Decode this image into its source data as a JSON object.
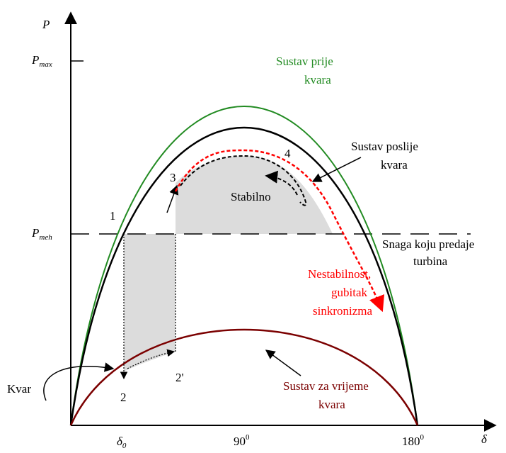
{
  "axes": {
    "y_label": "P",
    "x_label": "δ",
    "pmax": {
      "main": "P",
      "sub": "max"
    },
    "pmeh": {
      "main": "P",
      "sub": "meh"
    },
    "delta0": {
      "main": "δ",
      "sub": "0"
    },
    "x90": {
      "main": "90",
      "sup": "0"
    },
    "x180": {
      "main": "180",
      "sup": "0"
    }
  },
  "curves": {
    "before": {
      "line1": "Sustav prije",
      "line2": "kvara",
      "color": "#228b22"
    },
    "after": {
      "line1": "Sustav poslije",
      "line2": "kvara",
      "color": "#000000"
    },
    "during": {
      "line1": "Sustav za vrijeme",
      "line2": "kvara",
      "color": "#7b0000"
    }
  },
  "turbine": {
    "line1": "Snaga koju predaje",
    "line2": "turbina"
  },
  "stable": {
    "text": "Stabilno"
  },
  "unstable": {
    "line1": "Nestabilnost,",
    "line2": "gubitak",
    "line3": "sinkronizma",
    "color": "#ff0000"
  },
  "fault": {
    "text": "Kvar"
  },
  "points": {
    "p1": "1",
    "p2": "2",
    "p2p": "2'",
    "p3": "3",
    "p4": "4"
  }
}
